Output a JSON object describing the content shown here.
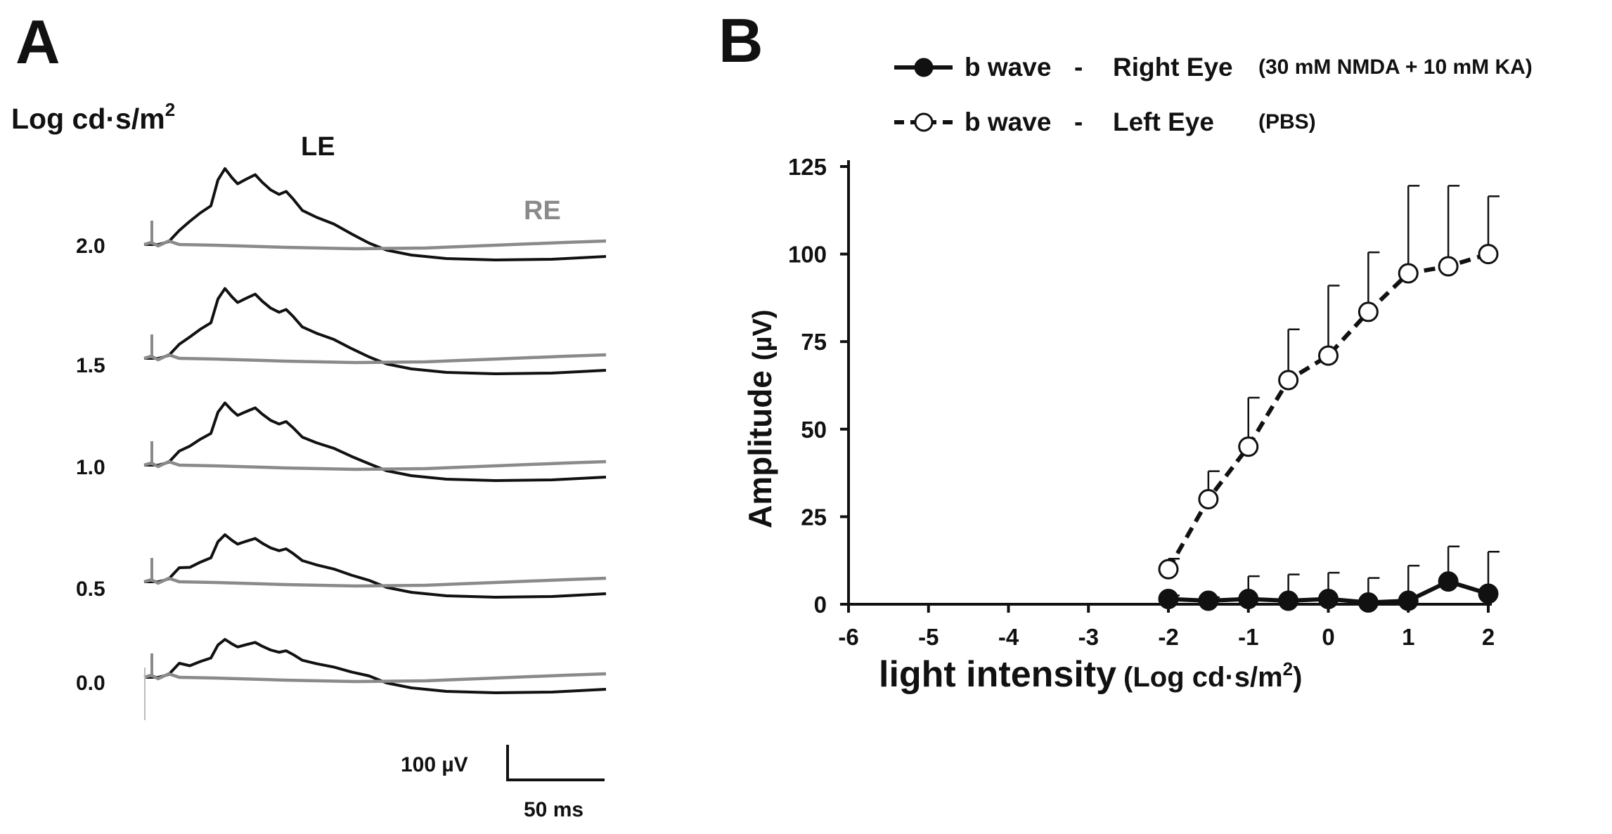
{
  "panel_a": {
    "letter": "A",
    "unit_label": "Log cd·s/m",
    "unit_sup": "2",
    "le_label": "LE",
    "re_label": "RE",
    "le_color": "#111111",
    "re_color": "#8a8a8a",
    "intensities": [
      "2.0",
      "1.5",
      "1.0",
      "0.5",
      "0.0"
    ],
    "trace_amplitude_scale": [
      1.0,
      0.92,
      0.82,
      0.62,
      0.5
    ],
    "scale_bar": {
      "voltage_label": "100 µV",
      "time_label": "50 ms"
    }
  },
  "panel_b": {
    "letter": "B",
    "legend": [
      {
        "marker": "filled",
        "line": "solid",
        "name": "b wave",
        "sep": "-",
        "eye": "Right Eye",
        "treatment": "(30 mM NMDA + 10 mM KA)"
      },
      {
        "marker": "open",
        "line": "dashed",
        "name": "b wave",
        "sep": "-",
        "eye": "Left Eye",
        "treatment": "(PBS)"
      }
    ]
  },
  "chart_data": {
    "type": "line",
    "title": "",
    "xlabel_bold": "light  intensity",
    "xlabel_unit": "(Log cd·s/m",
    "xlabel_sup": "2",
    "xlabel_close": ")",
    "ylabel": "Amplitude",
    "ylabel_unit": "(µV)",
    "xlim": [
      -6,
      2
    ],
    "ylim": [
      0,
      125
    ],
    "xticks": [
      -6,
      -5,
      -4,
      -3,
      -2,
      -1,
      0,
      1,
      2
    ],
    "yticks": [
      0,
      25,
      50,
      75,
      100,
      125
    ],
    "series": [
      {
        "name": "b wave - Right Eye (30 mM NMDA + 10 mM KA)",
        "marker": "filled",
        "line": "solid",
        "x": [
          -2,
          -1.5,
          -1,
          -0.5,
          0,
          0.5,
          1,
          1.5,
          2
        ],
        "values": [
          1.5,
          1,
          1.5,
          1,
          1.5,
          0.5,
          1,
          6.5,
          3
        ],
        "error": [
          1,
          1,
          6.5,
          7.5,
          7.5,
          7,
          10,
          10,
          12
        ]
      },
      {
        "name": "b wave - Left Eye (PBS)",
        "marker": "open",
        "line": "dashed",
        "x": [
          -2,
          -1.5,
          -1,
          -0.5,
          0,
          0.5,
          1,
          1.5,
          2
        ],
        "values": [
          10,
          30,
          45,
          64,
          71,
          83.5,
          94.5,
          96.5,
          100
        ],
        "error": [
          3,
          8,
          14,
          14.5,
          20,
          17,
          25,
          23,
          16.5
        ]
      }
    ]
  }
}
